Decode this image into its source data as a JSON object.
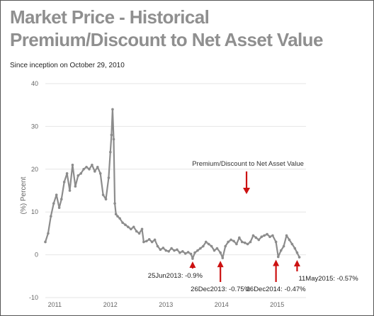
{
  "page": {
    "title": "Market Price - Historical Premium/Discount to Net Asset Value",
    "subtitle": "Since inception on October 29, 2010"
  },
  "colors": {
    "series": "#8c8c8c",
    "arrow": "#cc1111",
    "grid": "#e6e6e6",
    "axis_text": "#666666"
  },
  "chart_data": {
    "type": "line",
    "title": "Market Price - Historical Premium/Discount to Net Asset Value",
    "subtitle": "Since inception on October 29, 2010",
    "ylabel": "(%) Percent",
    "xlabel": "",
    "x_ticks": [
      "2011",
      "2012",
      "2013",
      "2014",
      "2015"
    ],
    "y_ticks": [
      -10,
      0,
      10,
      20,
      30,
      40
    ],
    "xlim": [
      2010.83,
      2015.52
    ],
    "ylim": [
      -10,
      40
    ],
    "grid": "horizontal",
    "x_scale": "year",
    "series": [
      {
        "name": "Premium/Discount to Net Asset Value",
        "x": [
          2010.83,
          2010.88,
          2010.93,
          2010.98,
          2011.03,
          2011.08,
          2011.12,
          2011.17,
          2011.22,
          2011.27,
          2011.32,
          2011.37,
          2011.42,
          2011.47,
          2011.52,
          2011.57,
          2011.62,
          2011.67,
          2011.72,
          2011.77,
          2011.82,
          2011.87,
          2011.92,
          2011.97,
          2012.0,
          2012.02,
          2012.04,
          2012.06,
          2012.08,
          2012.1,
          2012.13,
          2012.17,
          2012.22,
          2012.27,
          2012.32,
          2012.37,
          2012.42,
          2012.47,
          2012.52,
          2012.57,
          2012.6,
          2012.65,
          2012.7,
          2012.75,
          2012.8,
          2012.85,
          2012.9,
          2012.95,
          2013.0,
          2013.05,
          2013.1,
          2013.15,
          2013.2,
          2013.25,
          2013.3,
          2013.35,
          2013.4,
          2013.45,
          2013.48,
          2013.52,
          2013.57,
          2013.62,
          2013.67,
          2013.72,
          2013.77,
          2013.82,
          2013.87,
          2013.92,
          2013.98,
          2014.02,
          2014.07,
          2014.12,
          2014.17,
          2014.22,
          2014.27,
          2014.32,
          2014.37,
          2014.42,
          2014.47,
          2014.52,
          2014.57,
          2014.62,
          2014.67,
          2014.72,
          2014.77,
          2014.82,
          2014.87,
          2014.92,
          2014.98,
          2015.02,
          2015.07,
          2015.12,
          2015.17,
          2015.22,
          2015.27,
          2015.32,
          2015.36,
          2015.4
        ],
        "values": [
          3.0,
          5.0,
          9.0,
          12.0,
          14.0,
          11.0,
          13.0,
          17.0,
          19.0,
          15.0,
          21.0,
          16.0,
          18.5,
          19.0,
          20.0,
          20.5,
          20.0,
          21.0,
          19.5,
          20.5,
          19.0,
          14.0,
          13.0,
          18.0,
          24.0,
          28.0,
          34.0,
          27.0,
          12.0,
          9.5,
          9.0,
          8.5,
          7.5,
          7.0,
          6.5,
          6.0,
          6.5,
          5.5,
          5.0,
          6.0,
          3.0,
          3.2,
          3.6,
          3.0,
          3.5,
          2.0,
          1.2,
          1.6,
          1.0,
          0.8,
          1.5,
          1.0,
          1.2,
          0.5,
          0.8,
          0.3,
          0.6,
          0.2,
          -0.9,
          0.5,
          1.0,
          1.5,
          2.0,
          3.0,
          2.5,
          2.0,
          1.0,
          1.5,
          0.5,
          -0.75,
          2.0,
          3.0,
          3.5,
          3.2,
          2.5,
          4.0,
          3.0,
          2.8,
          2.5,
          3.0,
          4.5,
          4.0,
          3.5,
          4.2,
          4.5,
          4.8,
          4.2,
          4.5,
          3.0,
          -0.47,
          1.0,
          2.0,
          4.5,
          3.5,
          2.5,
          1.5,
          0.5,
          -0.57
        ]
      }
    ],
    "annotations": [
      {
        "label": "Premium/Discount to Net Asset Value",
        "x": 2014.45,
        "y": 20.8
      },
      {
        "label": "25Jun2013:  -0.9%",
        "x": 2013.48,
        "y": -0.9
      },
      {
        "label": "26Dec2013:  -0.75%",
        "x": 2013.98,
        "y": -0.75
      },
      {
        "label": "26Dec2014:  -0.47%",
        "x": 2014.98,
        "y": -0.47
      },
      {
        "label": "11May2015:  -0.57%",
        "x": 2015.36,
        "y": -0.57
      }
    ]
  }
}
